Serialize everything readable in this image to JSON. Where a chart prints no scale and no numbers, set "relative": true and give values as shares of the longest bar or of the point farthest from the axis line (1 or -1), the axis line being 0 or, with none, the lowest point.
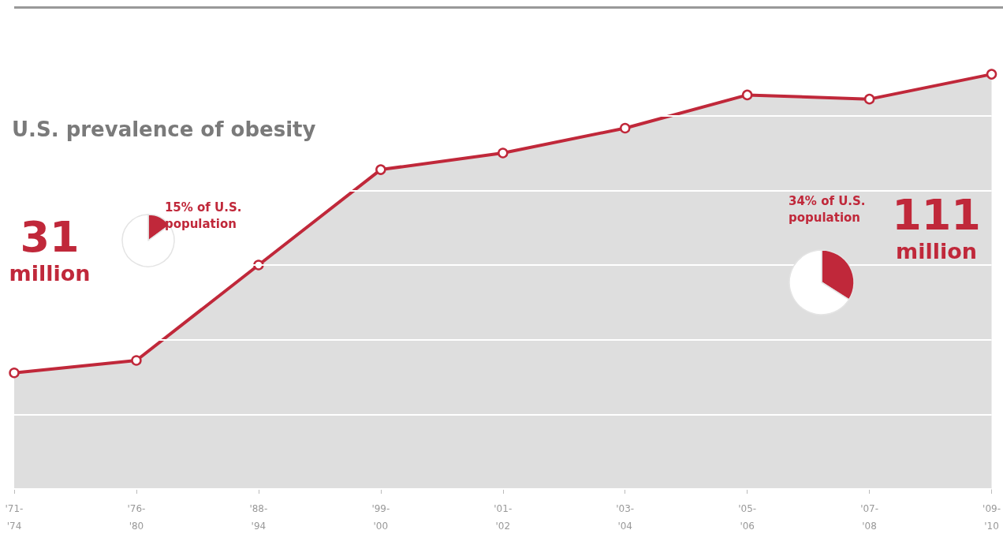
{
  "chart_data": [
    {
      "type": "area",
      "title": "U.S. prevalence of obesity",
      "categories": [
        "'71-'74",
        "'76-'80",
        "'88-'94",
        "'99-'00",
        "'01-'02",
        "'03-'04",
        "'05-'06",
        "'07-'08",
        "'09-'10"
      ],
      "values": [
        0.28,
        0.31,
        0.54,
        0.77,
        0.81,
        0.87,
        0.95,
        0.94,
        1
      ],
      "relative": true,
      "annotations": [
        "31\nmillion",
        "111\nmillion"
      ],
      "color": "#c0283a",
      "tick_labels": "x",
      "grid": "y",
      "marker": "circle"
    },
    {
      "type": "pie",
      "categories": [
        "15% of U.S. population",
        null
      ],
      "values": [
        15,
        85
      ],
      "colors": [
        "#c0283a",
        "#ffffff"
      ]
    },
    {
      "type": "pie",
      "categories": [
        "34% of U.S. population",
        null
      ],
      "values": [
        34,
        66
      ],
      "colors": [
        "#c0283a",
        "#ffffff"
      ]
    }
  ]
}
